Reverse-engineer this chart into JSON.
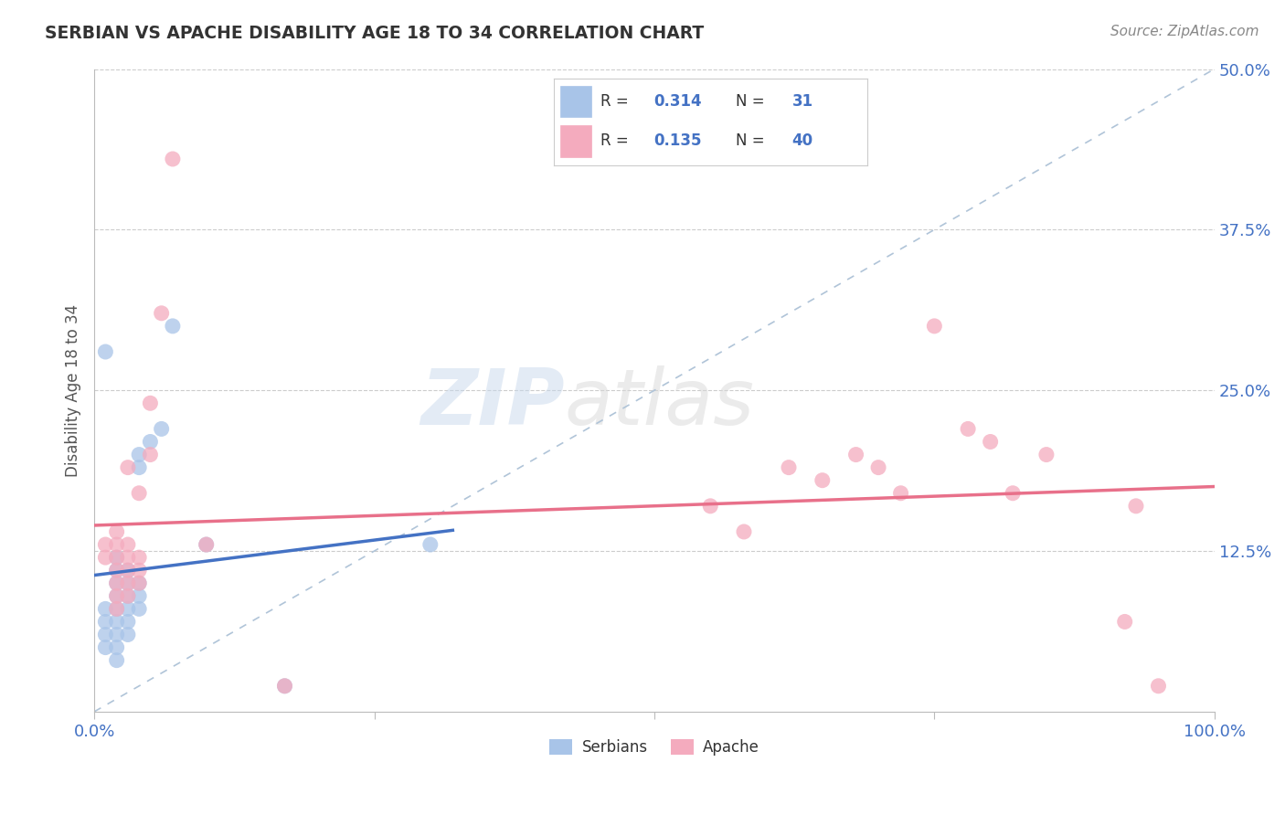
{
  "title": "SERBIAN VS APACHE DISABILITY AGE 18 TO 34 CORRELATION CHART",
  "source": "Source: ZipAtlas.com",
  "ylabel": "Disability Age 18 to 34",
  "xlim": [
    0.0,
    1.0
  ],
  "ylim": [
    0.0,
    0.5
  ],
  "r_serbian": "0.314",
  "n_serbian": "31",
  "r_apache": "0.135",
  "n_apache": "40",
  "serbian_color": "#a8c4e8",
  "apache_color": "#f4abbe",
  "regression_serbian_color": "#4472c4",
  "regression_apache_color": "#e8708a",
  "diagonal_color": "#b0c4d8",
  "watermark_zip": "ZIP",
  "watermark_atlas": "atlas",
  "serbian_points": [
    [
      0.01,
      0.05
    ],
    [
      0.01,
      0.06
    ],
    [
      0.01,
      0.07
    ],
    [
      0.01,
      0.08
    ],
    [
      0.02,
      0.04
    ],
    [
      0.02,
      0.05
    ],
    [
      0.02,
      0.06
    ],
    [
      0.02,
      0.07
    ],
    [
      0.02,
      0.08
    ],
    [
      0.02,
      0.09
    ],
    [
      0.02,
      0.1
    ],
    [
      0.02,
      0.11
    ],
    [
      0.02,
      0.12
    ],
    [
      0.03,
      0.06
    ],
    [
      0.03,
      0.07
    ],
    [
      0.03,
      0.08
    ],
    [
      0.03,
      0.09
    ],
    [
      0.03,
      0.1
    ],
    [
      0.03,
      0.11
    ],
    [
      0.04,
      0.08
    ],
    [
      0.04,
      0.09
    ],
    [
      0.04,
      0.1
    ],
    [
      0.04,
      0.19
    ],
    [
      0.04,
      0.2
    ],
    [
      0.05,
      0.21
    ],
    [
      0.06,
      0.22
    ],
    [
      0.07,
      0.3
    ],
    [
      0.1,
      0.13
    ],
    [
      0.17,
      0.02
    ],
    [
      0.3,
      0.13
    ],
    [
      0.01,
      0.28
    ]
  ],
  "apache_points": [
    [
      0.01,
      0.12
    ],
    [
      0.01,
      0.13
    ],
    [
      0.02,
      0.08
    ],
    [
      0.02,
      0.09
    ],
    [
      0.02,
      0.1
    ],
    [
      0.02,
      0.11
    ],
    [
      0.02,
      0.12
    ],
    [
      0.02,
      0.13
    ],
    [
      0.02,
      0.14
    ],
    [
      0.03,
      0.09
    ],
    [
      0.03,
      0.1
    ],
    [
      0.03,
      0.11
    ],
    [
      0.03,
      0.12
    ],
    [
      0.03,
      0.13
    ],
    [
      0.03,
      0.19
    ],
    [
      0.04,
      0.1
    ],
    [
      0.04,
      0.11
    ],
    [
      0.04,
      0.12
    ],
    [
      0.04,
      0.17
    ],
    [
      0.05,
      0.2
    ],
    [
      0.05,
      0.24
    ],
    [
      0.06,
      0.31
    ],
    [
      0.07,
      0.43
    ],
    [
      0.1,
      0.13
    ],
    [
      0.17,
      0.02
    ],
    [
      0.55,
      0.16
    ],
    [
      0.58,
      0.14
    ],
    [
      0.62,
      0.19
    ],
    [
      0.65,
      0.18
    ],
    [
      0.68,
      0.2
    ],
    [
      0.7,
      0.19
    ],
    [
      0.72,
      0.17
    ],
    [
      0.75,
      0.3
    ],
    [
      0.78,
      0.22
    ],
    [
      0.8,
      0.21
    ],
    [
      0.82,
      0.17
    ],
    [
      0.85,
      0.2
    ],
    [
      0.92,
      0.07
    ],
    [
      0.95,
      0.02
    ],
    [
      0.93,
      0.16
    ]
  ]
}
